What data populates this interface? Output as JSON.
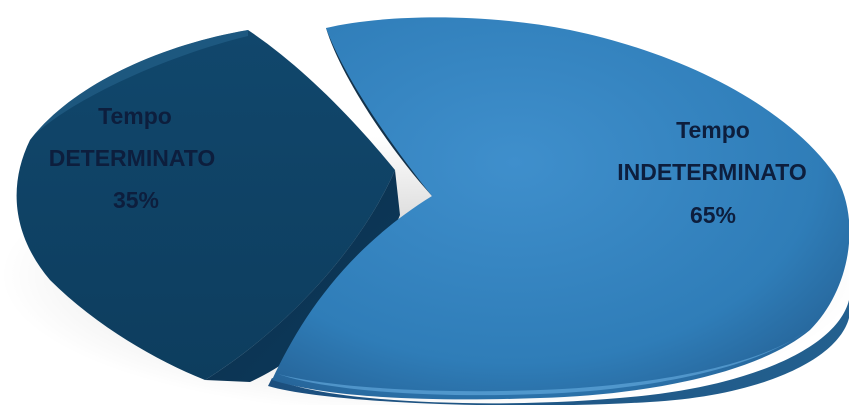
{
  "chart_data": {
    "type": "pie",
    "style": "3d-exploded",
    "legend": "none",
    "slices": [
      {
        "category": "Tempo",
        "label": "DETERMINATO",
        "value": 35,
        "value_label": "35%",
        "color": "#0f4466"
      },
      {
        "category": "Tempo",
        "label": "INDETERMINATO",
        "value": 65,
        "value_label": "65%",
        "color": "#2d7bb6"
      }
    ]
  }
}
